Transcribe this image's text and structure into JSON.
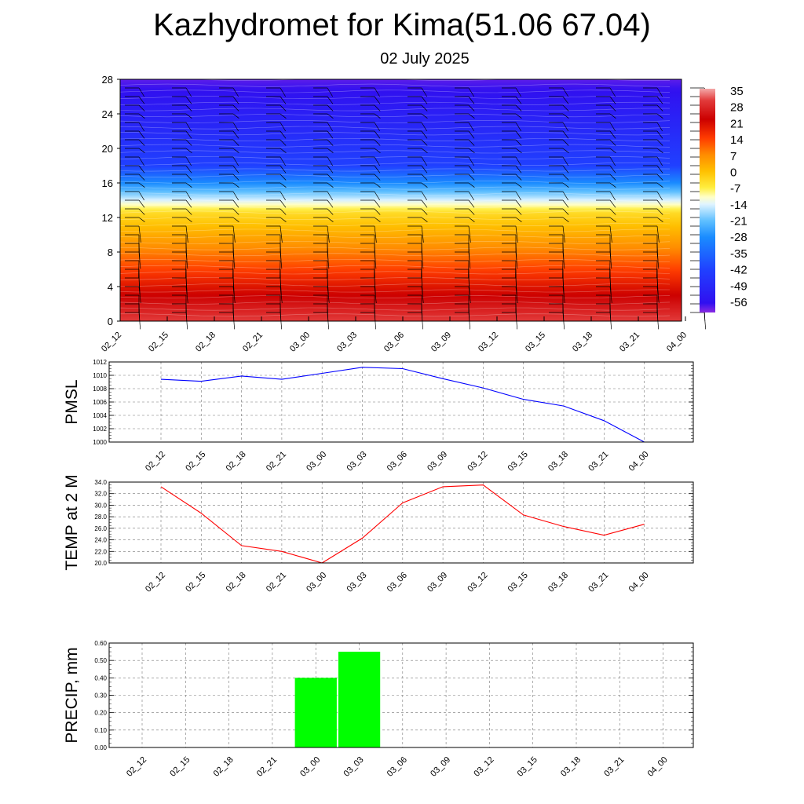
{
  "header": {
    "title": "Kazhydromet for Kima(51.06 67.04)",
    "subtitle": "02 July 2025"
  },
  "chart_data": [
    {
      "type": "heatmap",
      "title": "Kazhydromet for Kima(51.06 67.04)",
      "subtitle": "02 July 2025",
      "x_labels": [
        "02_12",
        "02_15",
        "02_18",
        "02_21",
        "03_00",
        "03_03",
        "03_06",
        "03_09",
        "03_12",
        "03_15",
        "03_18",
        "03_21",
        "04_00"
      ],
      "y_ticks": [
        0,
        4,
        8,
        12,
        16,
        20,
        24,
        28
      ],
      "ylim": [
        0,
        28
      ],
      "colorbar": {
        "labels": [
          "35",
          "28",
          "21",
          "14",
          "7",
          "0",
          "-7",
          "-14",
          "-21",
          "-28",
          "-35",
          "-42",
          "-49",
          "-56"
        ],
        "stops": [
          {
            "value": 35,
            "color": "#f4a8a8"
          },
          {
            "value": 30,
            "color": "#e23a3a"
          },
          {
            "value": 22,
            "color": "#cc0000"
          },
          {
            "value": 14,
            "color": "#ff3c00"
          },
          {
            "value": 7,
            "color": "#ff8c00"
          },
          {
            "value": 0,
            "color": "#ffc000"
          },
          {
            "value": -7,
            "color": "#ffee40"
          },
          {
            "value": -11,
            "color": "#ffffc8"
          },
          {
            "value": -14,
            "color": "#e0f4ff"
          },
          {
            "value": -21,
            "color": "#60c0ff"
          },
          {
            "value": -28,
            "color": "#1a8cff"
          },
          {
            "value": -42,
            "color": "#2040ff"
          },
          {
            "value": -56,
            "color": "#3010f0"
          },
          {
            "value": -60,
            "color": "#8a2be2"
          }
        ]
      }
    },
    {
      "type": "line",
      "ylabel": "PMSL",
      "x_labels": [
        "02_12",
        "02_15",
        "02_18",
        "02_21",
        "03_00",
        "03_03",
        "03_06",
        "03_09",
        "03_12",
        "03_15",
        "03_18",
        "03_21",
        "04_00"
      ],
      "values": [
        1009.4,
        1009.1,
        1009.9,
        1009.4,
        1010.3,
        1011.2,
        1011.0,
        1009.5,
        1008.1,
        1006.4,
        1005.4,
        1003.2,
        1000.0
      ],
      "y_tick_labels": [
        "1000",
        "1002",
        "1004",
        "1006",
        "1008",
        "1010",
        "1012"
      ],
      "ylim": [
        1000,
        1012
      ],
      "line_color": "#0000ff",
      "grid": "dashed"
    },
    {
      "type": "line",
      "ylabel": "TEMP at 2 M",
      "x_labels": [
        "02_12",
        "02_15",
        "02_18",
        "02_21",
        "03_00",
        "03_03",
        "03_06",
        "03_09",
        "03_12",
        "03_15",
        "03_18",
        "03_21",
        "04_00"
      ],
      "values": [
        33.2,
        28.6,
        23.0,
        22.0,
        20.0,
        24.3,
        30.4,
        33.2,
        33.5,
        28.3,
        26.3,
        24.8,
        26.7
      ],
      "y_tick_labels": [
        "20.0",
        "22.0",
        "24.0",
        "26.0",
        "28.0",
        "30.0",
        "32.0",
        "34.0"
      ],
      "ylim": [
        20,
        34
      ],
      "line_color": "#ff0000",
      "grid": "dashed"
    },
    {
      "type": "bar",
      "ylabel": "PRECIP, mm",
      "x_labels": [
        "02_12",
        "02_15",
        "02_18",
        "02_21",
        "03_00",
        "03_03",
        "03_06",
        "03_09",
        "03_12",
        "03_15",
        "03_18",
        "03_21",
        "04_00"
      ],
      "values": [
        0,
        0,
        0,
        0,
        0.4,
        0.55,
        0,
        0,
        0,
        0,
        0,
        0,
        0
      ],
      "y_tick_labels": [
        "0.00",
        "0.10",
        "0.20",
        "0.30",
        "0.40",
        "0.50",
        "0.60"
      ],
      "ylim": [
        0,
        0.6
      ],
      "bar_color": "#00ff00",
      "grid": "dashed"
    }
  ]
}
